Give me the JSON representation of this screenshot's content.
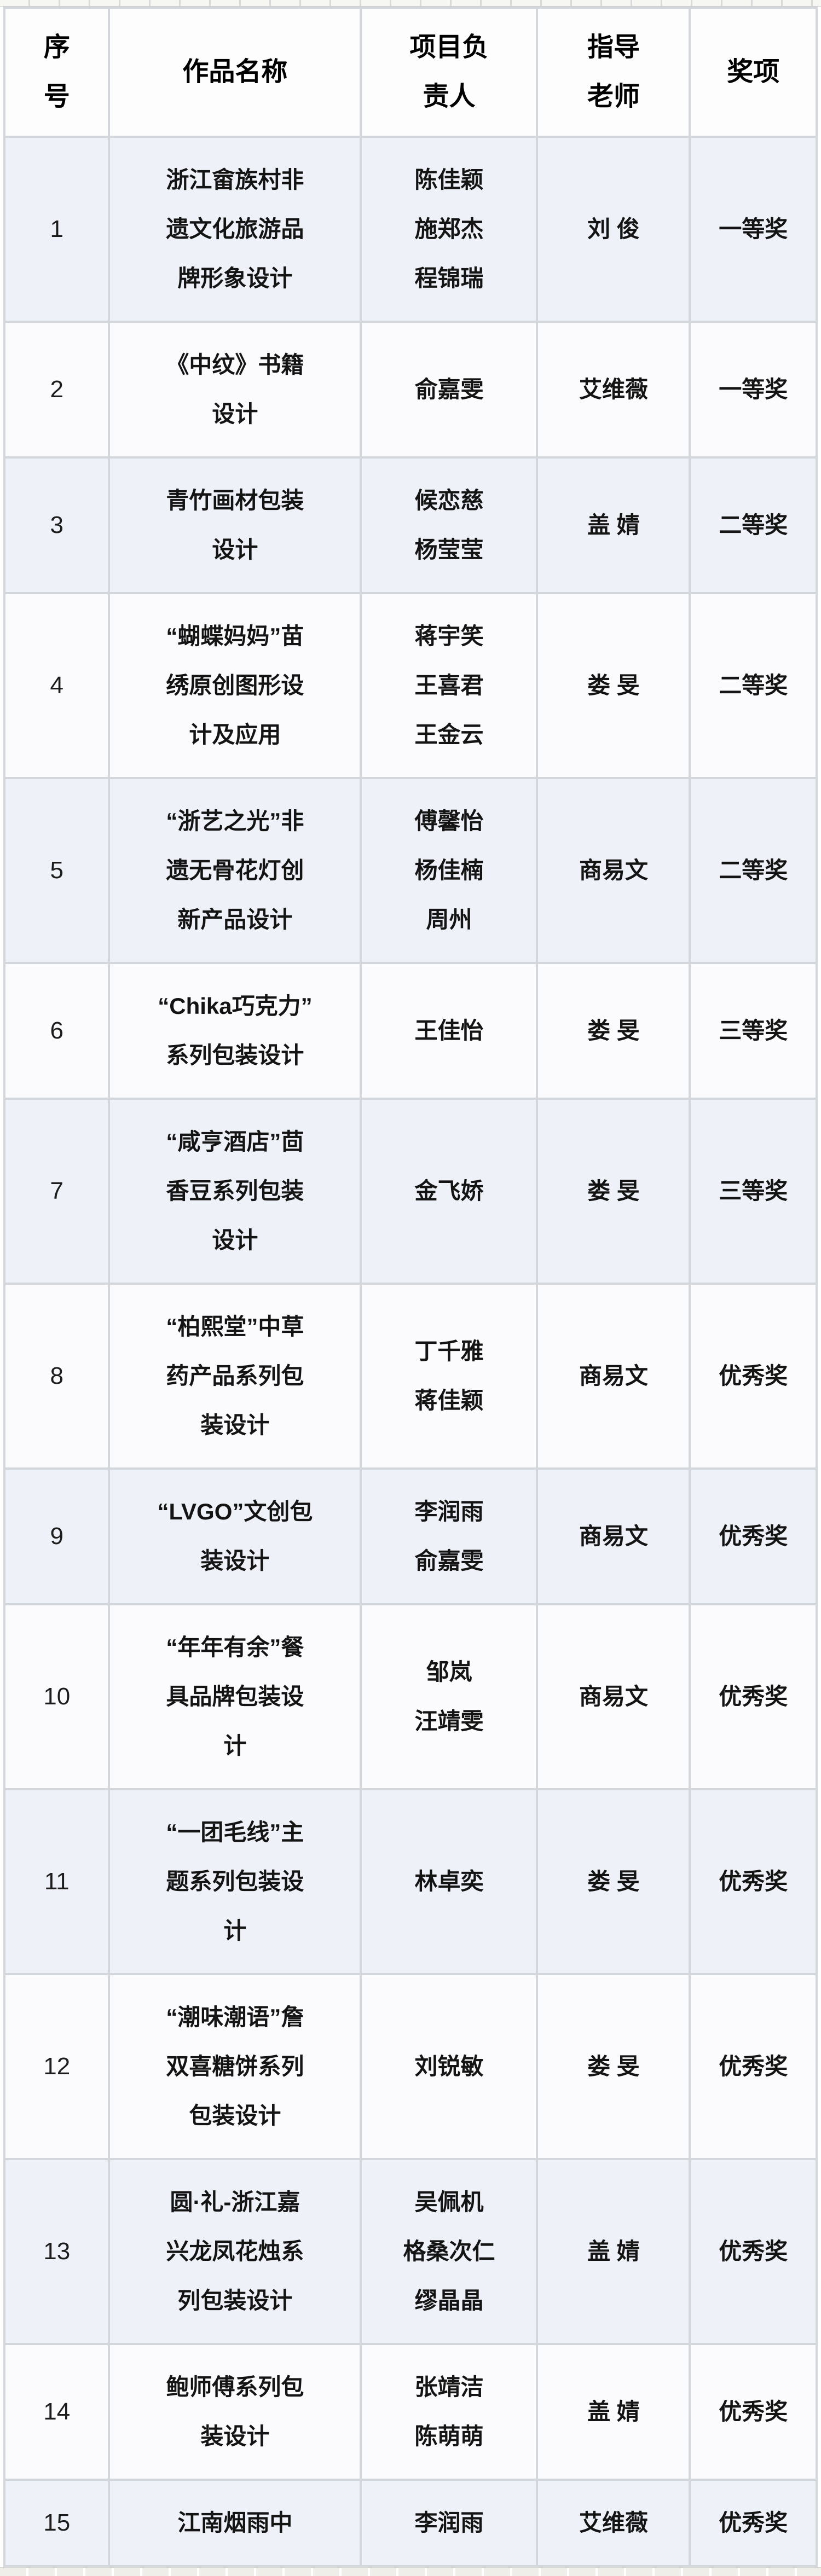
{
  "document": {
    "type": "award-list-table",
    "language": "zh-CN"
  },
  "colors": {
    "page_background": "#ffffff",
    "row_tint": "#eef1f8",
    "row_plain": "#fbfbfd",
    "header_background": "#fdfdfe",
    "grid_border": "#d3d6da",
    "text": "#141414"
  },
  "table": {
    "headers": [
      {
        "id": "index",
        "label": [
          "序",
          "号"
        ]
      },
      {
        "id": "work",
        "label": [
          "作品名称"
        ]
      },
      {
        "id": "leader",
        "label": [
          "项目负",
          "责人"
        ]
      },
      {
        "id": "teacher",
        "label": [
          "指导",
          "老师"
        ]
      },
      {
        "id": "award",
        "label": [
          "奖项"
        ]
      }
    ],
    "rows": [
      {
        "no": "1",
        "work": [
          "浙江畲族村非",
          "遗文化旅游品",
          "牌形象设计"
        ],
        "leaders": [
          "陈佳颖",
          "施郑杰",
          "程锦瑞"
        ],
        "teacher": "刘 俊",
        "award": "一等奖"
      },
      {
        "no": "2",
        "work": [
          "《中纹》书籍",
          "设计"
        ],
        "leaders": [
          "俞嘉雯"
        ],
        "teacher": "艾维薇",
        "award": "一等奖"
      },
      {
        "no": "3",
        "work": [
          "青竹画材包装",
          "设计"
        ],
        "leaders": [
          "候恋慈",
          "杨莹莹"
        ],
        "teacher": "盖 婧",
        "award": "二等奖"
      },
      {
        "no": "4",
        "work": [
          "“蝴蝶妈妈”苗",
          "绣原创图形设",
          "计及应用"
        ],
        "leaders": [
          "蒋宇笑",
          "王喜君",
          "王金云"
        ],
        "teacher": "娄 旻",
        "award": "二等奖"
      },
      {
        "no": "5",
        "work": [
          "“浙艺之光”非",
          "遗无骨花灯创",
          "新产品设计"
        ],
        "leaders": [
          "傅馨怡",
          "杨佳楠",
          "周州"
        ],
        "teacher": "商易文",
        "award": "二等奖"
      },
      {
        "no": "6",
        "work": [
          "“Chika巧克力”",
          "系列包装设计"
        ],
        "leaders": [
          "王佳怡"
        ],
        "teacher": "娄 旻",
        "award": "三等奖"
      },
      {
        "no": "7",
        "work": [
          "“咸亨酒店”茴",
          "香豆系列包装",
          "设计"
        ],
        "leaders": [
          "金飞娇"
        ],
        "teacher": "娄 旻",
        "award": "三等奖"
      },
      {
        "no": "8",
        "work": [
          "“柏熙堂”中草",
          "药产品系列包",
          "装设计"
        ],
        "leaders": [
          "丁千雅",
          "蒋佳颖"
        ],
        "teacher": "商易文",
        "award": "优秀奖"
      },
      {
        "no": "9",
        "work": [
          "“LVGO”文创包",
          "装设计"
        ],
        "leaders": [
          "李润雨",
          "俞嘉雯"
        ],
        "teacher": "商易文",
        "award": "优秀奖"
      },
      {
        "no": "10",
        "work": [
          "“年年有余”餐",
          "具品牌包装设",
          "计"
        ],
        "leaders": [
          "邹岚",
          "汪靖雯"
        ],
        "teacher": "商易文",
        "award": "优秀奖"
      },
      {
        "no": "11",
        "work": [
          "“一团毛线”主",
          "题系列包装设",
          "计"
        ],
        "leaders": [
          "林卓奕"
        ],
        "teacher": "娄 旻",
        "award": "优秀奖"
      },
      {
        "no": "12",
        "work": [
          "“潮味潮语”詹",
          "双喜糖饼系列",
          "包装设计"
        ],
        "leaders": [
          "刘锐敏"
        ],
        "teacher": "娄 旻",
        "award": "优秀奖"
      },
      {
        "no": "13",
        "work": [
          "圆·礼-浙江嘉",
          "兴龙凤花烛系",
          "列包装设计"
        ],
        "leaders": [
          "吴佩机",
          "格桑次仁",
          "缪晶晶"
        ],
        "teacher": "盖 婧",
        "award": "优秀奖"
      },
      {
        "no": "14",
        "work": [
          "鲍师傅系列包",
          "装设计"
        ],
        "leaders": [
          "张靖洁",
          "陈萌萌"
        ],
        "teacher": "盖 婧",
        "award": "优秀奖"
      },
      {
        "no": "15",
        "work": [
          "江南烟雨中"
        ],
        "leaders": [
          "李润雨"
        ],
        "teacher": "艾维薇",
        "award": "优秀奖"
      }
    ]
  }
}
